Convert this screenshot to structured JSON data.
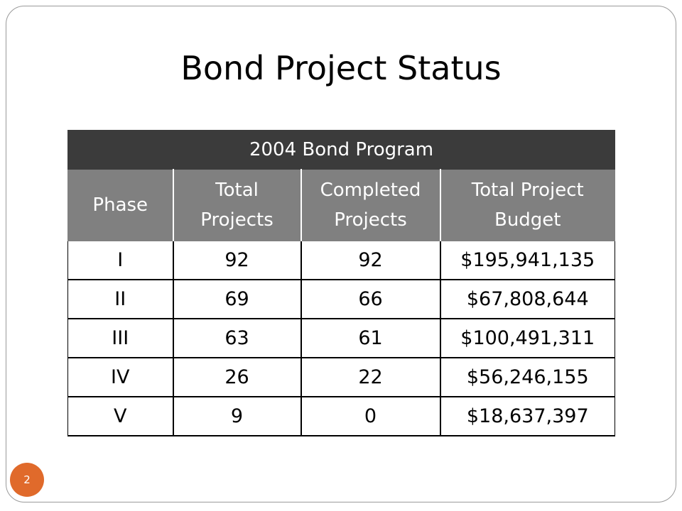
{
  "slide": {
    "title": "Bond Project Status",
    "page_number": "2"
  },
  "table": {
    "program_header": "2004 Bond Program",
    "columns": [
      {
        "line1": "Phase",
        "line2": ""
      },
      {
        "line1": "Total",
        "line2": "Projects"
      },
      {
        "line1": "Completed",
        "line2": "Projects"
      },
      {
        "line1": "Total Project",
        "line2": "Budget"
      }
    ],
    "rows": [
      [
        "I",
        "92",
        "92",
        "$195,941,135"
      ],
      [
        "II",
        "69",
        "66",
        "$67,808,644"
      ],
      [
        "III",
        "63",
        "61",
        "$100,491,311"
      ],
      [
        "IV",
        "26",
        "22",
        "$56,246,155"
      ],
      [
        "V",
        "9",
        "0",
        "$18,637,397"
      ]
    ]
  },
  "colors": {
    "program_header_bg": "#3b3b3b",
    "column_header_bg": "#808080",
    "badge": "#e06a2b"
  }
}
